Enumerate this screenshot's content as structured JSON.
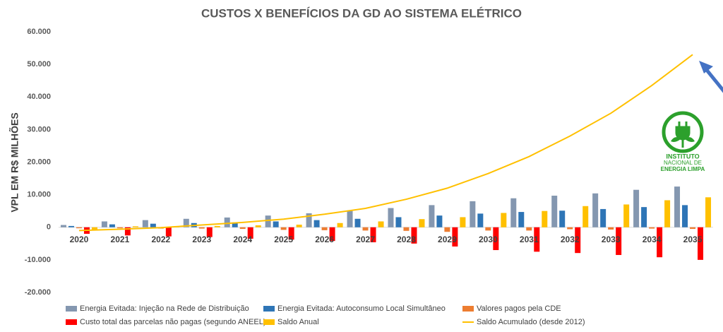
{
  "chart_data": {
    "type": "bar",
    "title": "CUSTOS X BENEFÍCIOS DA GD AO SISTEMA ELÉTRICO",
    "y_label": "VPL EM R$ MILHÕES",
    "categories": [
      "2020",
      "2021",
      "2022",
      "2023",
      "2024",
      "2025",
      "2026",
      "2027",
      "2028",
      "2029",
      "2030",
      "2031",
      "2032",
      "2033",
      "2034",
      "2035"
    ],
    "series": [
      {
        "name": "Energia Evitada: Injeção na Rede de Distribuição",
        "color": "#8497b0",
        "values": [
          700,
          1800,
          2200,
          2600,
          3000,
          3600,
          4300,
          5000,
          5900,
          6800,
          8000,
          8900,
          9700,
          10400,
          11500,
          12500
        ]
      },
      {
        "name": "Energia Evitada: Autoconsumo Local Simultâneo",
        "color": "#2e75b6",
        "values": [
          400,
          900,
          1100,
          1300,
          1500,
          1800,
          2200,
          2600,
          3100,
          3600,
          4200,
          4700,
          5100,
          5600,
          6200,
          6800
        ]
      },
      {
        "name": "Valores pagos pela CDE",
        "color": "#ed7d31",
        "values": [
          -300,
          -300,
          -400,
          -400,
          -500,
          -800,
          -900,
          -1000,
          -1100,
          -1400,
          -1000,
          -1000,
          -600,
          -700,
          -400,
          -500
        ]
      },
      {
        "name": "Custo total das parcelas não pagas (segundo ANEEL)",
        "color": "#ff0000",
        "values": [
          -2000,
          -2500,
          -2800,
          -3000,
          -3500,
          -3800,
          -4200,
          -4600,
          -5000,
          -5900,
          -7000,
          -7500,
          -7900,
          -8500,
          -9200,
          -10000
        ]
      },
      {
        "name": "Saldo Anual",
        "color": "#ffc000",
        "values": [
          -1000,
          300,
          300,
          400,
          600,
          800,
          1300,
          1800,
          2500,
          3100,
          4400,
          5000,
          6500,
          7000,
          8300,
          9200
        ]
      },
      {
        "name": "Saldo Acumulado (desde 2012)",
        "color": "#ffc000",
        "type": "line",
        "values": [
          -1000,
          -600,
          -100,
          700,
          1500,
          2500,
          4000,
          5800,
          8600,
          12000,
          16500,
          21700,
          28000,
          35000,
          43500,
          53000
        ]
      }
    ],
    "ylim": [
      -20000,
      60000
    ],
    "yticks": [
      {
        "value": -20000,
        "label": "-20.000"
      },
      {
        "value": -10000,
        "label": "-10.000"
      },
      0,
      {
        "value": 10000,
        "label": "10.000"
      },
      {
        "value": 20000,
        "label": "20.000"
      },
      {
        "value": 30000,
        "label": "30.000"
      },
      {
        "value": 40000,
        "label": "40.000"
      },
      {
        "value": 50000,
        "label": "50.000"
      },
      {
        "value": 60000,
        "label": "60.000"
      }
    ],
    "grid": false
  },
  "logo": [
    "INSTITUTO",
    "NACIONAL DE",
    "ENERGIA LIMPA"
  ]
}
